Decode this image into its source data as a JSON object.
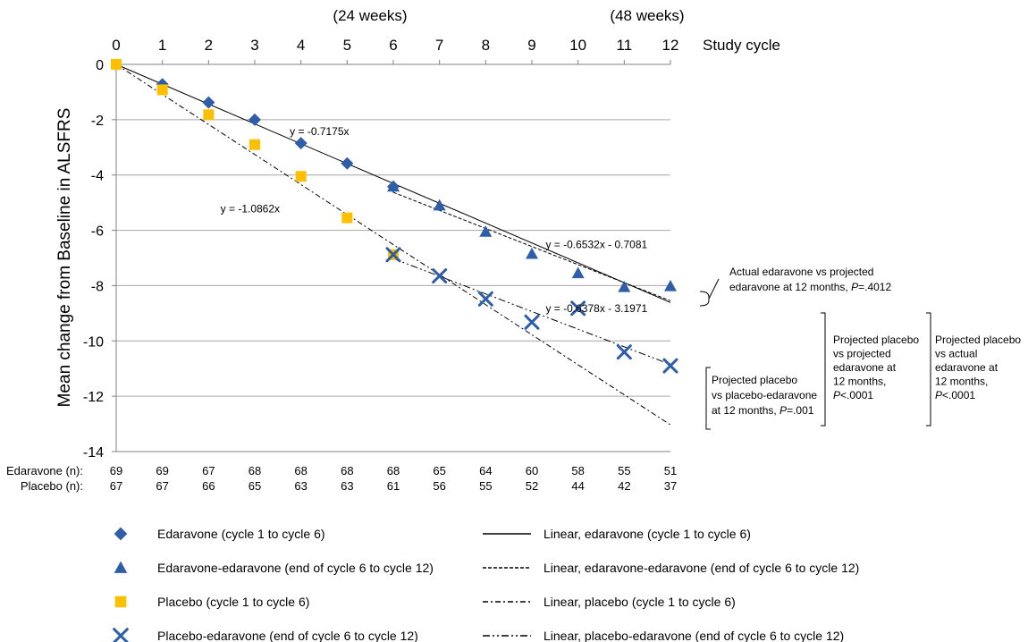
{
  "chart_data": {
    "type": "scatter",
    "ylabel": "Mean change from Baseline in ALSFRS",
    "x_top_label": "Study cycle",
    "x_range": [
      0,
      12
    ],
    "ylim": [
      -14,
      0
    ],
    "grid": true,
    "x_ticks": [
      "0",
      "1",
      "2",
      "3",
      "4",
      "5",
      "6",
      "7",
      "8",
      "9",
      "10",
      "11",
      "12"
    ],
    "y_ticks": [
      "0",
      "-2",
      "-4",
      "-6",
      "-8",
      "-10",
      "-12",
      "-14"
    ],
    "week_labels": [
      {
        "x": 6,
        "text": "(24 weeks)"
      },
      {
        "x": 12,
        "text": "(48 weeks)"
      }
    ],
    "series": [
      {
        "name": "Edaravone (cycle 1 to cycle 6)",
        "marker": "diamond",
        "color": "#2e5ea8",
        "points": [
          [
            1,
            -0.72
          ],
          [
            2,
            -1.38
          ],
          [
            3,
            -2.0
          ],
          [
            4,
            -2.85
          ],
          [
            5,
            -3.58
          ],
          [
            6,
            -4.42
          ]
        ]
      },
      {
        "name": "Edaravone-edaravone (end of cycle 6 to cycle 12)",
        "marker": "triangle",
        "color": "#2e5ea8",
        "points": [
          [
            6,
            -4.42
          ],
          [
            7,
            -5.1
          ],
          [
            8,
            -6.05
          ],
          [
            9,
            -6.85
          ],
          [
            10,
            -7.55
          ],
          [
            11,
            -8.05
          ],
          [
            12,
            -8.02
          ]
        ]
      },
      {
        "name": "Placebo (cycle 1 to cycle 6)",
        "marker": "square",
        "color": "#fcc000",
        "points": [
          [
            0,
            0
          ],
          [
            1,
            -0.92
          ],
          [
            2,
            -1.82
          ],
          [
            3,
            -2.9
          ],
          [
            4,
            -4.05
          ],
          [
            5,
            -5.55
          ],
          [
            6,
            -6.88
          ]
        ]
      },
      {
        "name": "Placebo-edaravone (end of cycle 6 to cycle 12)",
        "marker": "x",
        "color": "#2e5ea8",
        "points": [
          [
            6,
            -6.88
          ],
          [
            7,
            -7.65
          ],
          [
            8,
            -8.48
          ],
          [
            9,
            -9.32
          ],
          [
            10,
            -8.82
          ],
          [
            11,
            -10.4
          ],
          [
            12,
            -10.9
          ]
        ]
      }
    ],
    "trendlines": [
      {
        "name": "Linear, edaravone (cycle 1 to cycle 6)",
        "dash": "solid",
        "slope": -0.7175,
        "intercept": 0,
        "from": 0,
        "to": 12
      },
      {
        "name": "Linear, edaravone-edaravone (end of cycle 6 to cycle 12)",
        "dash": "dashed",
        "slope": -0.6532,
        "intercept": -0.7081,
        "from": 6,
        "to": 12
      },
      {
        "name": "Linear, placebo (cycle 1 to cycle 6)",
        "dash": "dashdot",
        "slope": -1.0862,
        "intercept": 0,
        "from": 0,
        "to": 12
      },
      {
        "name": "Linear, placebo-edaravone (end of cycle 6 to cycle 12)",
        "dash": "dashdotdot",
        "slope": -0.6378,
        "intercept": -3.1971,
        "from": 6,
        "to": 12
      }
    ],
    "equations": [
      {
        "text": "y = -0.7175x",
        "x": 4.4,
        "y": -2.55
      },
      {
        "text": "y = -1.0862x",
        "x": 2.9,
        "y": -5.35
      },
      {
        "text": "y = -0.6532x - 0.7081",
        "x": 10.4,
        "y": -6.65
      },
      {
        "text": "y = -0.6378x - 3.1971",
        "x": 10.4,
        "y": -8.95
      }
    ],
    "n_table": {
      "rows": [
        {
          "label": "Edaravone (n):",
          "values": [
            "69",
            "69",
            "67",
            "68",
            "68",
            "68",
            "68",
            "65",
            "64",
            "60",
            "58",
            "55",
            "51"
          ]
        },
        {
          "label": "Placebo (n):",
          "values": [
            "67",
            "67",
            "66",
            "65",
            "63",
            "63",
            "61",
            "56",
            "55",
            "52",
            "44",
            "42",
            "37"
          ]
        }
      ]
    },
    "annotations": [
      {
        "lines": [
          "Actual edaravone vs projected",
          "edaravone at 12 months, |P|=.4012"
        ]
      },
      {
        "lines": [
          "Projected placebo",
          "vs placebo-edaravone",
          "at 12 months, |P|=.001"
        ]
      },
      {
        "lines": [
          "Projected placebo",
          "vs projected",
          "edaravone at",
          "12 months,",
          "|P|<.0001"
        ]
      },
      {
        "lines": [
          "Projected placebo",
          "vs actual",
          "edaravone at",
          "12 months,",
          "|P|<.0001"
        ]
      }
    ],
    "legend_position": "bottom"
  }
}
